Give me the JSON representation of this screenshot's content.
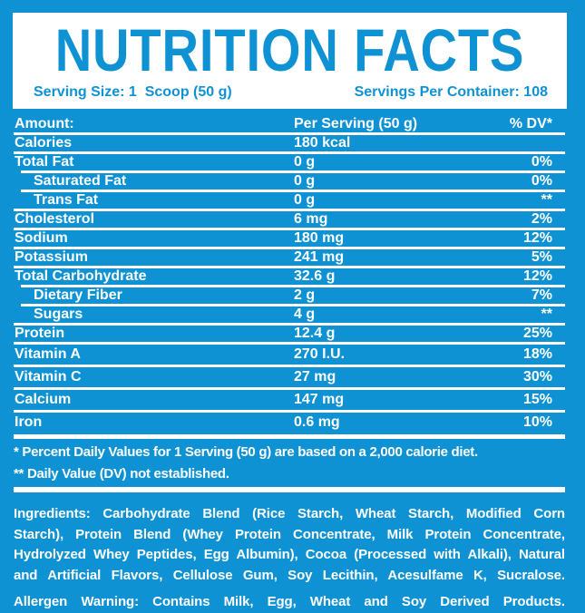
{
  "colors": {
    "accent_blue": "#0E92D3",
    "text_on_blue": "#FFFFFF",
    "header_box": "#FFFFFF"
  },
  "header": {
    "title": "NUTRITION FACTS",
    "serving_size": "Serving Size: 1  Scoop (50 g)",
    "servings_per_container": "Servings Per Container: 108"
  },
  "table": {
    "columns": {
      "amount": "Amount:",
      "per_serving": "Per Serving (50 g)",
      "dv": "% DV*"
    },
    "rows": [
      {
        "label": "Calories",
        "value": "180 kcal",
        "dv": ""
      },
      {
        "label": "Total Fat",
        "value": "0 g",
        "dv": "0%"
      },
      {
        "label": "Saturated Fat",
        "value": "0 g",
        "dv": "0%"
      },
      {
        "label": "Trans Fat",
        "value": "0 g",
        "dv": "**"
      },
      {
        "label": "Cholesterol",
        "value": "6 mg",
        "dv": "2%"
      },
      {
        "label": "Sodium",
        "value": "180 mg",
        "dv": "12%"
      },
      {
        "label": "Potassium",
        "value": "241 mg",
        "dv": "5%"
      },
      {
        "label": "Total Carbohydrate",
        "value": "32.6 g",
        "dv": "12%"
      },
      {
        "label": "Dietary Fiber",
        "value": "2 g",
        "dv": "7%"
      },
      {
        "label": "Sugars",
        "value": "4 g",
        "dv": "**"
      },
      {
        "label": "Protein",
        "value": "12.4 g",
        "dv": "25%"
      },
      {
        "label": "Vitamin A",
        "value": "270 I.U.",
        "dv": "18%"
      },
      {
        "label": "Vitamin C",
        "value": "27 mg",
        "dv": "30%"
      },
      {
        "label": "Calcium",
        "value": "147 mg",
        "dv": "15%"
      },
      {
        "label": "Iron",
        "value": "0.6 mg",
        "dv": "10%"
      }
    ]
  },
  "footnotes": {
    "note1": "* Percent Daily Values for 1 Serving (50 g) are based on a 2,000 calorie diet.",
    "note2": "** Daily Value (DV) not established."
  },
  "ingredients": "Ingredients: Carbohydrate Blend (Rice Starch, Wheat Starch, Modified Corn Starch), Protein Blend (Whey Protein Concentrate, Milk Protein Concentrate, Hydrolyzed Whey Peptides, Egg Albumin), Cocoa (Processed with Alkali), Natural and Artificial Flavors, Cellulose Gum, Soy Lecithin, Acesulfame K, Sucralose.",
  "allergen": "Allergen Warning: Contains Milk, Egg, Wheat and Soy Derived Products."
}
